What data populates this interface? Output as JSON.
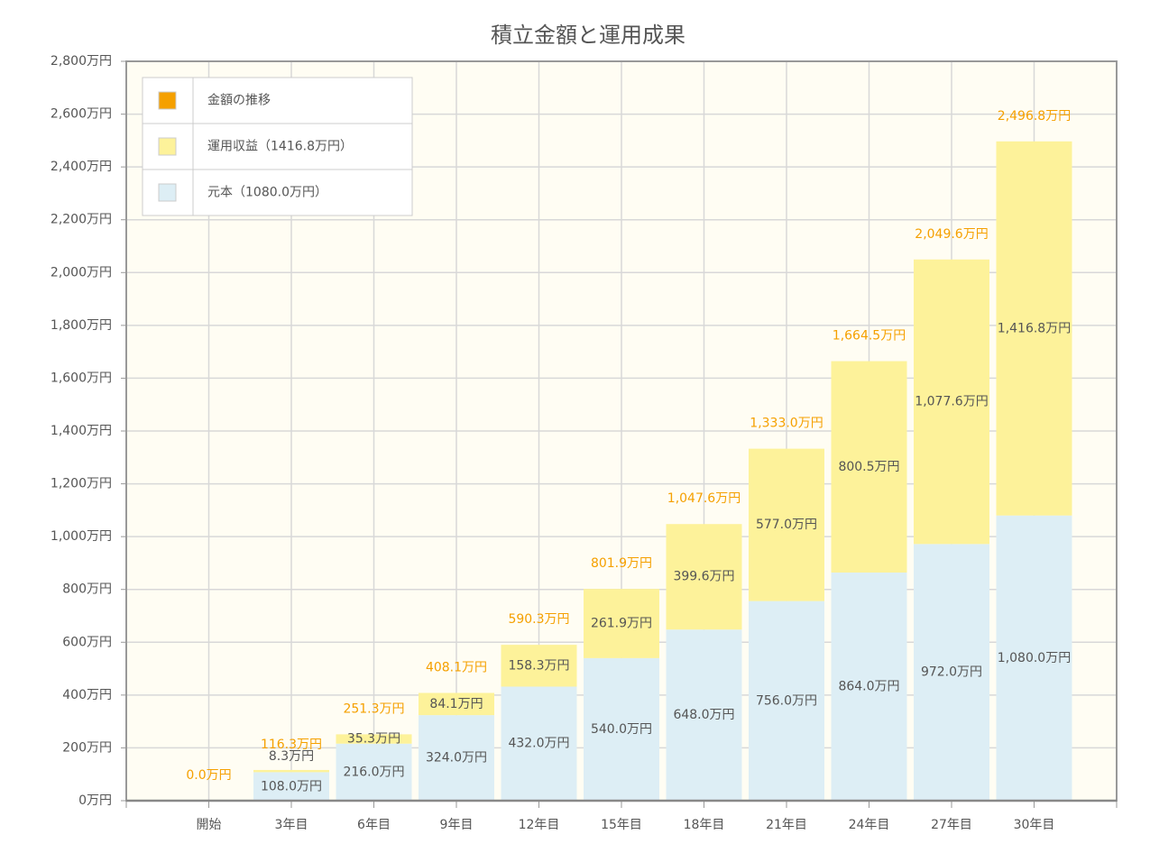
{
  "chart_data": {
    "type": "bar",
    "stacked": true,
    "title": "積立金額と運用成果",
    "categories": [
      "開始",
      "3年目",
      "6年目",
      "9年目",
      "12年目",
      "15年目",
      "18年目",
      "21年目",
      "24年目",
      "27年目",
      "30年目"
    ],
    "series": [
      {
        "name": "元本（1080.0万円）",
        "type": "bar",
        "color": "#ddeef5",
        "values": [
          0,
          108,
          216,
          324,
          432,
          540,
          648,
          756,
          864,
          972,
          1080
        ],
        "value_labels": [
          null,
          "108.0万円",
          "216.0万円",
          "324.0万円",
          "432.0万円",
          "540.0万円",
          "648.0万円",
          "756.0万円",
          "864.0万円",
          "972.0万円",
          "1,080.0万円"
        ]
      },
      {
        "name": "運用収益（1416.8万円）",
        "type": "bar",
        "color": "#fdf29a",
        "values": [
          0,
          8.3,
          35.3,
          84.1,
          158.3,
          261.9,
          399.6,
          577.0,
          800.5,
          1077.6,
          1416.8
        ],
        "value_labels": [
          null,
          "8.3万円",
          "35.3万円",
          "84.1万円",
          "158.3万円",
          "261.9万円",
          "399.6万円",
          "577.0万円",
          "800.5万円",
          "1,077.6万円",
          "1,416.8万円"
        ]
      },
      {
        "name": "金額の推移",
        "type": "text",
        "color": "#f5a000",
        "values": [
          0,
          116.3,
          251.3,
          408.1,
          590.3,
          801.9,
          1047.6,
          1333.0,
          1664.5,
          2049.6,
          2496.8
        ],
        "value_labels": [
          "0.0万円",
          "116.3万円",
          "251.3万円",
          "408.1万円",
          "590.3万円",
          "801.9万円",
          "1,047.6万円",
          "1,333.0万円",
          "1,664.5万円",
          "2,049.6万円",
          "2,496.8万円"
        ]
      }
    ],
    "ylim": [
      0,
      2800
    ],
    "yticks": [
      {
        "value": 0,
        "label": "0万円"
      },
      {
        "value": 200,
        "label": "200万円"
      },
      {
        "value": 400,
        "label": "400万円"
      },
      {
        "value": 600,
        "label": "600万円"
      },
      {
        "value": 800,
        "label": "800万円"
      },
      {
        "value": 1000,
        "label": "1,000万円"
      },
      {
        "value": 1200,
        "label": "1,200万円"
      },
      {
        "value": 1400,
        "label": "1,400万円"
      },
      {
        "value": 1600,
        "label": "1,600万円"
      },
      {
        "value": 1800,
        "label": "1,800万円"
      },
      {
        "value": 2000,
        "label": "2,000万円"
      },
      {
        "value": 2200,
        "label": "2,200万円"
      },
      {
        "value": 2400,
        "label": "2,400万円"
      },
      {
        "value": 2600,
        "label": "2,600万円"
      },
      {
        "value": 2800,
        "label": "2,800万円"
      }
    ],
    "grid": true,
    "legend": "top-left"
  }
}
